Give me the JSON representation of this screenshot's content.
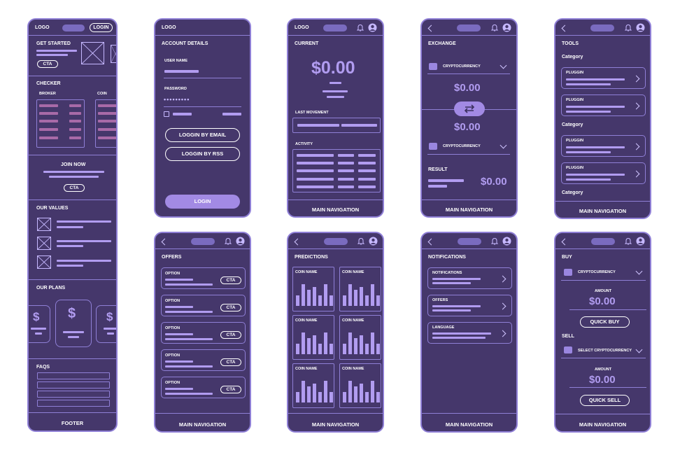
{
  "landing": {
    "logo": "LOGO",
    "login": "LOGIN",
    "get_started": "GET STARTED",
    "cta": "CTA",
    "checker": "CHECKER",
    "broker": "BROKER",
    "coin": "COIN",
    "join_now": "JOIN NOW",
    "our_values": "OUR VALUES",
    "our_plans": "OUR PLANS",
    "plan_symbol": "$",
    "faqs": "FAQS",
    "footer": "FOOTER"
  },
  "account": {
    "logo": "LOGO",
    "title": "ACCOUNT DETAILS",
    "user_name": "USER NAME",
    "password": "PASSWORD",
    "password_mask": "•••••••••",
    "login_email": "LOGGIN BY EMAIL",
    "login_rss": "LOGGIN BY RSS",
    "login": "LOGIN"
  },
  "current": {
    "logo": "LOGO",
    "title": "CURRENT",
    "amount": "$0.00",
    "last_movement": "LAST MOVEMENT",
    "activity": "ACTIVITY",
    "nav": "MAIN NAVIGATION"
  },
  "exchange": {
    "title": "EXCHANGE",
    "crypto1": "CRYPTOCURRENCY",
    "amount1": "$0.00",
    "amount2": "$0.00",
    "crypto2": "CRYPTOCURRENCY",
    "result": "RESULT",
    "result_amount": "$0.00",
    "nav": "MAIN NAVIGATION"
  },
  "tools": {
    "title": "TOOLS",
    "category": "Category",
    "pluggin": "PLUGGIN",
    "nav": "MAIN NAVIGATION"
  },
  "offers": {
    "title": "OFFERS",
    "option": "OPTION",
    "cta": "CTA",
    "nav": "MAIN NAVIGATION"
  },
  "predictions": {
    "title": "PREDICTIONS",
    "coin_name": "COIN NAME",
    "nav": "MAIN NAVIGATION"
  },
  "notifications": {
    "title": "NOTIFICATIONS",
    "items": [
      "NOTIFICATIONS",
      "OFFERS",
      "LANGUAGE"
    ],
    "nav": "MAIN NAVIGATION"
  },
  "buysell": {
    "buy": "BUY",
    "crypto": "CRYPTOCURRENCY",
    "amount_label": "AMOUNT",
    "amount": "$0.00",
    "quick_buy": "QUICK BUY",
    "sell": "SELL",
    "select_crypto": "SELECT CRYPTOCURRENCY",
    "amount_label2": "AMOUNT",
    "amount2": "$0.00",
    "quick_sell": "QUICK SELL",
    "nav": "MAIN NAVIGATION"
  },
  "colors": {
    "phone_bg": "#45376b",
    "accent": "#b19cf0",
    "outline": "#8f7fd6",
    "pink": "#a86aa8"
  }
}
